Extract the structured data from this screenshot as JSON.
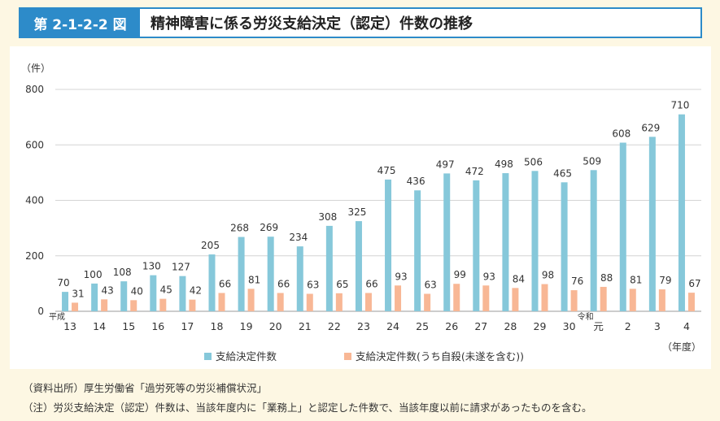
{
  "header": {
    "figure_number": "第 2-1-2-2 図",
    "title": "精神障害に係る労災支給決定（認定）件数の推移"
  },
  "chart_data": {
    "type": "bar",
    "y_unit": "（件）",
    "x_unit": "（年度）",
    "era_labels": [
      {
        "label": "平成",
        "category_index": 0
      },
      {
        "label": "令和",
        "category_index": 18
      }
    ],
    "categories": [
      "13",
      "14",
      "15",
      "16",
      "17",
      "18",
      "19",
      "20",
      "21",
      "22",
      "23",
      "24",
      "25",
      "26",
      "27",
      "28",
      "29",
      "30",
      "元",
      "2",
      "3",
      "4"
    ],
    "ylim": [
      0,
      800
    ],
    "yticks": [
      0,
      200,
      400,
      600,
      800
    ],
    "grid": true,
    "legend_position": "bottom",
    "series": [
      {
        "name": "支給決定件数",
        "color": "#86c8da",
        "values": [
          70,
          100,
          108,
          130,
          127,
          205,
          268,
          269,
          234,
          308,
          325,
          475,
          436,
          497,
          472,
          498,
          506,
          465,
          509,
          608,
          629,
          710
        ]
      },
      {
        "name": "支給決定件数(うち自殺(未遂を含む))",
        "color": "#f8b795",
        "values": [
          31,
          43,
          40,
          45,
          42,
          66,
          81,
          66,
          63,
          65,
          66,
          93,
          63,
          99,
          93,
          84,
          98,
          76,
          88,
          81,
          79,
          67
        ]
      }
    ]
  },
  "notes": {
    "source": "（資料出所）厚生労働省「過労死等の労災補償状況」",
    "note": "（注）労災支給決定（認定）件数は、当該年度内に「業務上」と認定した件数で、当該年度以前に請求があったものを含む。"
  }
}
